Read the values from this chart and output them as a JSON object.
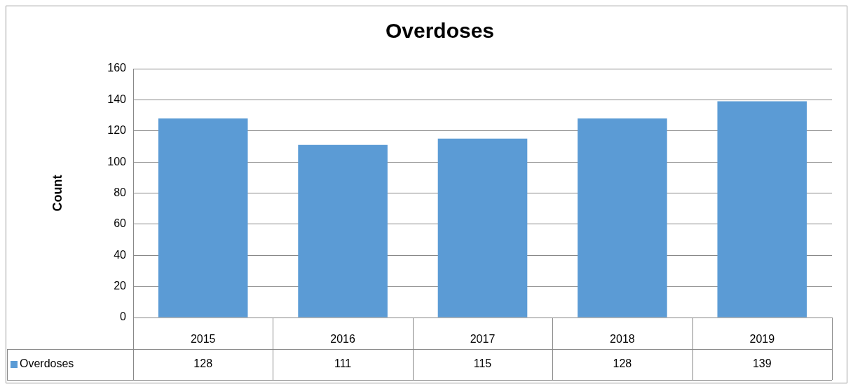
{
  "chart_data": {
    "type": "bar",
    "title": "Overdoses",
    "ylabel": "Count",
    "categories": [
      "2015",
      "2016",
      "2017",
      "2018",
      "2019"
    ],
    "series": [
      {
        "name": "Overdoses",
        "color": "#5b9bd5",
        "values": [
          128,
          111,
          115,
          128,
          139
        ]
      }
    ],
    "ylim": [
      0,
      160
    ],
    "yticks": [
      0,
      20,
      40,
      60,
      80,
      100,
      120,
      140,
      160
    ],
    "grid": "y",
    "legend": "bottom",
    "data_labels": true
  }
}
